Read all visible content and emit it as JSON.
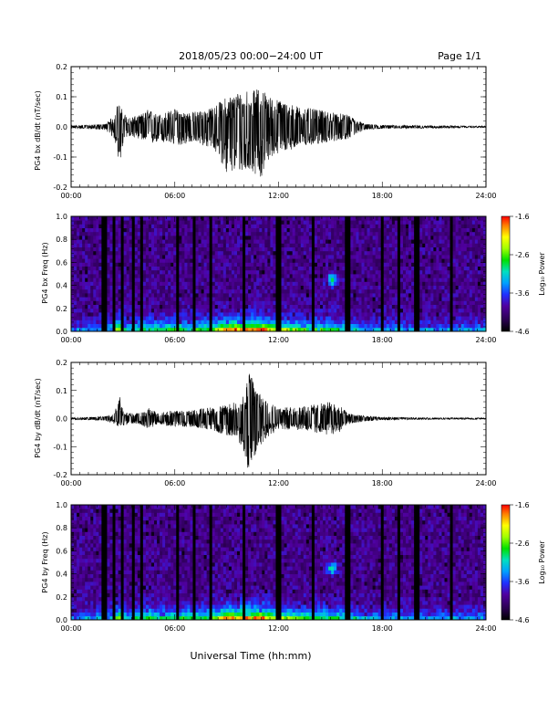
{
  "header": {
    "date_label": "2018/05/23  00:00−24:00 UT",
    "page_label": "Page 1/1"
  },
  "xaxis": {
    "label": "Universal Time (hh:mm)",
    "ticks": [
      "00:00",
      "06:00",
      "12:00",
      "18:00",
      "24:00"
    ],
    "range_hours": [
      0,
      24
    ]
  },
  "colorbar": {
    "title": "Log₁₀ Power",
    "ticks": [
      "-1.6",
      "-2.6",
      "-3.6",
      "-4.6"
    ],
    "range": [
      -4.6,
      -1.6
    ]
  },
  "chart_data": [
    {
      "type": "line",
      "ylabel": "PG4 bx dB/dt (nT/sec)",
      "ylim": [
        -0.2,
        0.2
      ],
      "ytick_labels": [
        "0.2",
        "0.1",
        "0.0",
        "-0.1",
        "-0.2"
      ],
      "envelope": {
        "t_hours": [
          0,
          1,
          2,
          2.5,
          2.7,
          2.85,
          3,
          3.3,
          4,
          4.5,
          5,
          6,
          6.5,
          7,
          8,
          8.5,
          9,
          9.5,
          10,
          10.5,
          11,
          11.5,
          12,
          12.5,
          13,
          14,
          15,
          16,
          17,
          18,
          19,
          20,
          21,
          22,
          23,
          24
        ],
        "upper": [
          0.005,
          0.006,
          0.01,
          0.04,
          0.08,
          0.07,
          0.05,
          0.03,
          0.04,
          0.06,
          0.04,
          0.06,
          0.05,
          0.05,
          0.06,
          0.08,
          0.1,
          0.11,
          0.13,
          0.12,
          0.13,
          0.1,
          0.09,
          0.08,
          0.07,
          0.06,
          0.05,
          0.04,
          0.01,
          0.006,
          0.005,
          0.005,
          0.004,
          0.004,
          0.003,
          0.003
        ],
        "lower": [
          -0.005,
          -0.006,
          -0.01,
          -0.04,
          -0.1,
          -0.12,
          -0.06,
          -0.03,
          -0.04,
          -0.06,
          -0.05,
          -0.06,
          -0.06,
          -0.05,
          -0.07,
          -0.09,
          -0.16,
          -0.15,
          -0.15,
          -0.15,
          -0.17,
          -0.1,
          -0.09,
          -0.08,
          -0.07,
          -0.06,
          -0.05,
          -0.04,
          -0.01,
          -0.006,
          -0.005,
          -0.005,
          -0.004,
          -0.004,
          -0.003,
          -0.003
        ]
      }
    },
    {
      "type": "heatmap",
      "ylabel": "PG4 bx Freq (Hz)",
      "ylim": [
        0,
        1.0
      ],
      "ytick_labels": [
        "1.0",
        "0.8",
        "0.6",
        "0.4",
        "0.2",
        "0.0"
      ],
      "data_gap_hours": [
        1.8,
        2.0,
        2.5,
        3.0,
        3.6,
        4.1,
        6.1,
        7.1,
        8.1,
        10.0,
        12.0,
        14.0,
        16.0,
        18.0,
        19.0,
        20.0,
        22.0
      ],
      "features": [
        {
          "t_hour": 15.1,
          "freq_hz": 0.45,
          "note": ""
        }
      ]
    },
    {
      "type": "line",
      "ylabel": "PG4 by dB/dt (nT/sec)",
      "ylim": [
        -0.2,
        0.2
      ],
      "ytick_labels": [
        "0.2",
        "0.1",
        "0.0",
        "-0.1",
        "-0.2"
      ],
      "envelope": {
        "t_hours": [
          0,
          1,
          2,
          2.5,
          2.8,
          3,
          3.3,
          4,
          4.5,
          5,
          6,
          7,
          8,
          8.5,
          9,
          9.5,
          10,
          10.2,
          10.4,
          10.6,
          11,
          11.5,
          12,
          13,
          14,
          15,
          15.5,
          16,
          17,
          18,
          19,
          20,
          21,
          22,
          23,
          24
        ],
        "upper": [
          0.004,
          0.005,
          0.008,
          0.02,
          0.09,
          0.03,
          0.02,
          0.02,
          0.04,
          0.02,
          0.03,
          0.03,
          0.04,
          0.04,
          0.05,
          0.06,
          0.08,
          0.15,
          0.17,
          0.12,
          0.09,
          0.06,
          0.04,
          0.04,
          0.05,
          0.06,
          0.05,
          0.02,
          0.01,
          0.005,
          0.004,
          0.004,
          0.003,
          0.003,
          0.003,
          0.003
        ],
        "lower": [
          -0.004,
          -0.005,
          -0.008,
          -0.02,
          -0.03,
          -0.03,
          -0.02,
          -0.02,
          -0.04,
          -0.02,
          -0.03,
          -0.03,
          -0.04,
          -0.05,
          -0.06,
          -0.06,
          -0.12,
          -0.18,
          -0.2,
          -0.15,
          -0.09,
          -0.06,
          -0.04,
          -0.04,
          -0.05,
          -0.06,
          -0.05,
          -0.02,
          -0.01,
          -0.005,
          -0.004,
          -0.004,
          -0.003,
          -0.003,
          -0.003,
          -0.003
        ]
      }
    },
    {
      "type": "heatmap",
      "ylabel": "PG4 by Freq (Hz)",
      "ylim": [
        0,
        1.0
      ],
      "ytick_labels": [
        "1.0",
        "0.8",
        "0.6",
        "0.4",
        "0.2",
        "0.0"
      ],
      "data_gap_hours": [
        1.8,
        2.0,
        2.5,
        3.0,
        3.6,
        4.1,
        6.1,
        7.1,
        8.1,
        10.0,
        12.0,
        14.0,
        16.0,
        18.0,
        19.0,
        20.0,
        22.0
      ],
      "features": [
        {
          "t_hour": 15.1,
          "freq_hz": 0.45,
          "note": ""
        }
      ]
    }
  ],
  "colors": {
    "line": "#000000",
    "background": "#ffffff"
  }
}
